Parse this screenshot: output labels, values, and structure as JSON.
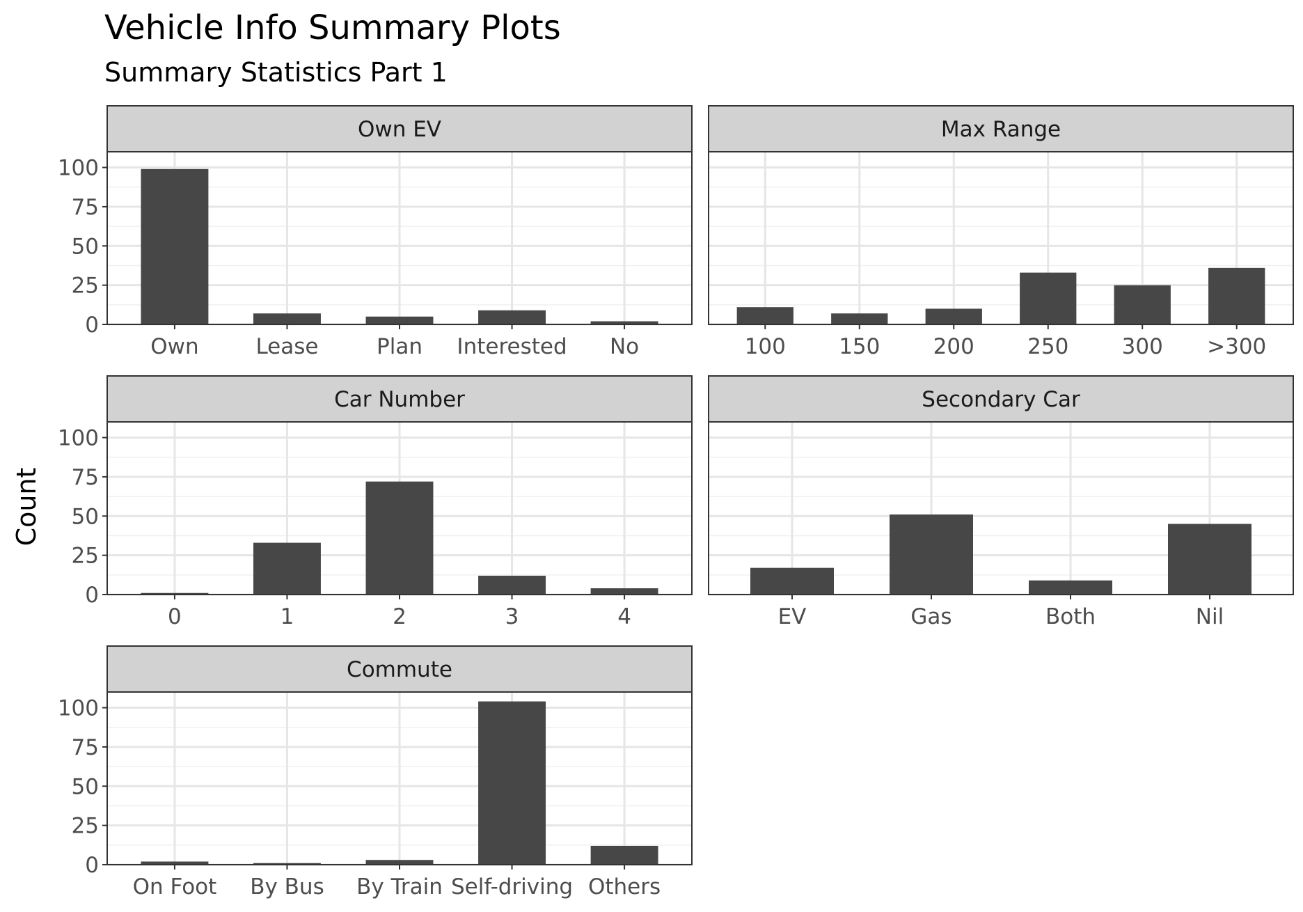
{
  "title": "Vehicle Info Summary Plots",
  "subtitle": "Summary Statistics Part 1",
  "y_axis_label": "Count",
  "colors": {
    "bar": "#474747",
    "strip": "#d2d2d2",
    "grid_major": "#e6e6e6",
    "grid_minor": "#f0f0f0",
    "border": "#333333",
    "tick_text": "#4d4d4d"
  },
  "chart_data": [
    {
      "type": "bar",
      "panel_title": "Own EV",
      "categories": [
        "Own",
        "Lease",
        "Plan",
        "Interested",
        "No"
      ],
      "values": [
        99,
        7,
        5,
        9,
        2
      ],
      "ylabel": "Count",
      "ylim": [
        0,
        110
      ],
      "yticks": [
        "0",
        "25",
        "50",
        "75",
        "100"
      ],
      "grid": true
    },
    {
      "type": "bar",
      "panel_title": "Max Range",
      "categories": [
        "100",
        "150",
        "200",
        "250",
        "300",
        ">300"
      ],
      "values": [
        11,
        7,
        10,
        33,
        25,
        36
      ],
      "ylabel": "Count",
      "ylim": [
        0,
        110
      ],
      "grid": true
    },
    {
      "type": "bar",
      "panel_title": "Car Number",
      "categories": [
        "0",
        "1",
        "2",
        "3",
        "4"
      ],
      "values": [
        1,
        33,
        72,
        12,
        4
      ],
      "ylabel": "Count",
      "ylim": [
        0,
        110
      ],
      "yticks": [
        "0",
        "25",
        "50",
        "75",
        "100"
      ],
      "grid": true
    },
    {
      "type": "bar",
      "panel_title": "Secondary Car",
      "categories": [
        "EV",
        "Gas",
        "Both",
        "Nil"
      ],
      "values": [
        17,
        51,
        9,
        45
      ],
      "ylabel": "Count",
      "ylim": [
        0,
        110
      ],
      "grid": true
    },
    {
      "type": "bar",
      "panel_title": "Commute",
      "categories": [
        "On Foot",
        "By Bus",
        "By Train",
        "Self-driving",
        "Others"
      ],
      "values": [
        2,
        1,
        3,
        104,
        12
      ],
      "ylabel": "Count",
      "ylim": [
        0,
        110
      ],
      "yticks": [
        "0",
        "25",
        "50",
        "75",
        "100"
      ],
      "grid": true
    }
  ]
}
